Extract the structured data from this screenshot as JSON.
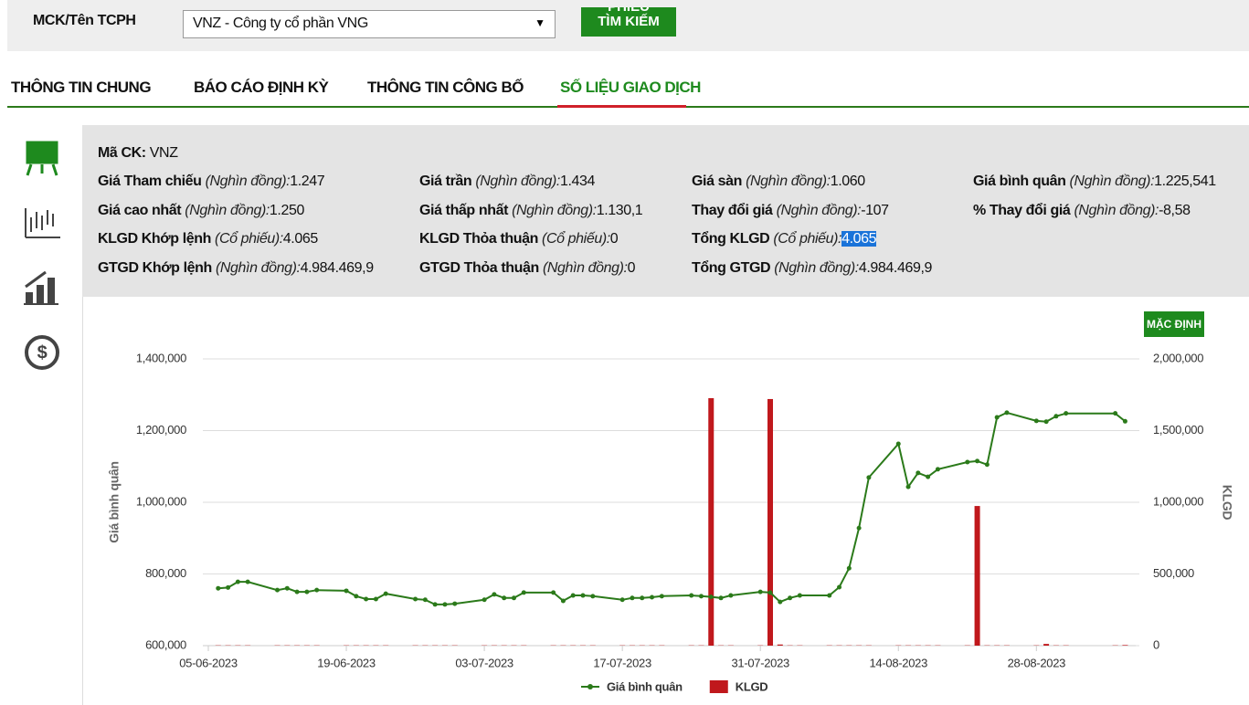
{
  "search": {
    "label": "MCK/Tên TCPH",
    "select": "VNZ - Công ty cổ phần VNG",
    "button_top": "PHIẾU",
    "button": "TÌM KIẾM"
  },
  "tabs": [
    "THÔNG TIN CHUNG",
    "BÁO CÁO ĐỊNH KỲ",
    "THÔNG TIN CÔNG BỐ",
    "SỐ LIỆU GIAO DỊCH"
  ],
  "info": {
    "code_label": "Mã CK:",
    "code": "VNZ",
    "rows": [
      [
        {
          "label": "Giá Tham chiếu",
          "unit": "(Nghìn đồng):",
          "value": "1.247"
        },
        {
          "label": "Giá trần",
          "unit": "(Nghìn đồng):",
          "value": "1.434"
        },
        {
          "label": "Giá sàn",
          "unit": "(Nghìn đồng):",
          "value": "1.060"
        },
        {
          "label": "Giá bình quân",
          "unit": "(Nghìn đồng):",
          "value": "1.225,541"
        }
      ],
      [
        {
          "label": "Giá cao nhất",
          "unit": "(Nghìn đồng):",
          "value": "1.250"
        },
        {
          "label": "Giá thấp nhất",
          "unit": "(Nghìn đồng):",
          "value": "1.130,1"
        },
        {
          "label": "Thay đổi giá",
          "unit": "(Nghìn đồng):",
          "value": "-107"
        },
        {
          "label": "% Thay đổi giá",
          "unit": "(Nghìn đồng):",
          "value": "-8,58"
        }
      ],
      [
        {
          "label": "KLGD Khớp lệnh",
          "unit": "(Cổ phiếu):",
          "value": "4.065"
        },
        {
          "label": "KLGD Thỏa thuận",
          "unit": "(Cổ phiếu):",
          "value": "0"
        },
        {
          "label": "Tổng KLGD",
          "unit": "(Cổ phiếu):",
          "value": "4.065"
        }
      ],
      [
        {
          "label": "GTGD Khớp lệnh",
          "unit": "(Nghìn đồng):",
          "value": "4.984.469,9"
        },
        {
          "label": "GTGD Thỏa thuận",
          "unit": "(Nghìn đồng):",
          "value": "0"
        },
        {
          "label": "Tổng GTGD",
          "unit": "(Nghìn đồng):",
          "value": "4.984.469,9"
        }
      ]
    ]
  },
  "reset_button": "MẶC ĐỊNH",
  "chart_data": {
    "type": "line_bar",
    "ylabel": "Giá bình quân",
    "y2label": "KLGD",
    "x": [
      "06-06-2023",
      "07-06-2023",
      "08-06-2023",
      "09-06-2023",
      "12-06-2023",
      "13-06-2023",
      "14-06-2023",
      "15-06-2023",
      "16-06-2023",
      "19-06-2023",
      "20-06-2023",
      "21-06-2023",
      "22-06-2023",
      "23-06-2023",
      "26-06-2023",
      "27-06-2023",
      "28-06-2023",
      "29-06-2023",
      "30-06-2023",
      "03-07-2023",
      "04-07-2023",
      "05-07-2023",
      "06-07-2023",
      "07-07-2023",
      "10-07-2023",
      "11-07-2023",
      "12-07-2023",
      "13-07-2023",
      "14-07-2023",
      "17-07-2023",
      "18-07-2023",
      "19-07-2023",
      "20-07-2023",
      "21-07-2023",
      "24-07-2023",
      "25-07-2023",
      "26-07-2023",
      "27-07-2023",
      "28-07-2023",
      "31-07-2023",
      "01-08-2023",
      "02-08-2023",
      "03-08-2023",
      "04-08-2023",
      "07-08-2023",
      "08-08-2023",
      "09-08-2023",
      "10-08-2023",
      "11-08-2023",
      "14-08-2023",
      "15-08-2023",
      "16-08-2023",
      "17-08-2023",
      "18-08-2023",
      "21-08-2023",
      "22-08-2023",
      "23-08-2023",
      "24-08-2023",
      "25-08-2023",
      "28-08-2023",
      "29-08-2023",
      "30-08-2023",
      "31-08-2023",
      "05-09-2023",
      "06-09-2023"
    ],
    "series": [
      {
        "name": "Giá bình quân",
        "type": "line",
        "color": "#2b7a1a",
        "values": [
          760000,
          762000,
          778000,
          778000,
          755000,
          760000,
          750000,
          750000,
          755000,
          753000,
          738000,
          730000,
          730000,
          745000,
          730000,
          728000,
          715000,
          715000,
          717000,
          728000,
          743000,
          733000,
          733000,
          748000,
          748000,
          725000,
          740000,
          740000,
          738000,
          728000,
          733000,
          733000,
          735000,
          738000,
          740000,
          738000,
          736000,
          733000,
          740000,
          750000,
          748000,
          722000,
          733000,
          740000,
          740000,
          763000,
          816000,
          928000,
          1069000,
          1163000,
          1043000,
          1082000,
          1071000,
          1092000,
          1112000,
          1115000,
          1105000,
          1237000,
          1250000,
          1227000,
          1225000,
          1240000,
          1248000,
          1248000,
          1226000
        ]
      },
      {
        "name": "KLGD",
        "type": "bar",
        "axis": "y2",
        "color": "#c0181c",
        "values": [
          2000,
          2000,
          2000,
          2000,
          2000,
          2000,
          2000,
          2000,
          2000,
          2000,
          2000,
          2000,
          2000,
          2000,
          2000,
          2000,
          2000,
          2000,
          2000,
          2000,
          2000,
          2000,
          2000,
          2000,
          2000,
          2000,
          2000,
          2000,
          2000,
          2000,
          2000,
          2000,
          2000,
          2000,
          2000,
          2000,
          1726000,
          2000,
          2000,
          2000,
          1720000,
          8000,
          2000,
          2000,
          2000,
          2000,
          2000,
          2000,
          2000,
          2000,
          2000,
          2000,
          2000,
          2000,
          2000,
          974000,
          2000,
          2000,
          2000,
          2000,
          12000,
          2000,
          2000,
          2000,
          4065
        ]
      }
    ],
    "xlim": [
      "05-06-2023",
      "08-09-2023"
    ],
    "xticks": [
      "05-06-2023",
      "19-06-2023",
      "03-07-2023",
      "17-07-2023",
      "31-07-2023",
      "14-08-2023",
      "28-08-2023"
    ],
    "ylim": [
      600000,
      1400000
    ],
    "yticks": [
      {
        "value": 600000,
        "label": "600,000"
      },
      {
        "value": 800000,
        "label": "800,000"
      },
      {
        "value": 1000000,
        "label": "1,000,000"
      },
      {
        "value": 1200000,
        "label": "1,200,000"
      },
      {
        "value": 1400000,
        "label": "1,400,000"
      }
    ],
    "y2lim": [
      0,
      2000000
    ],
    "y2ticks": [
      0,
      {
        "value": 500000,
        "label": "500,000"
      },
      {
        "value": 1000000,
        "label": "1,000,000"
      },
      {
        "value": 1500000,
        "label": "1,500,000"
      },
      {
        "value": 2000000,
        "label": "2,000,000"
      }
    ],
    "grid": true,
    "legend": "bottom"
  }
}
